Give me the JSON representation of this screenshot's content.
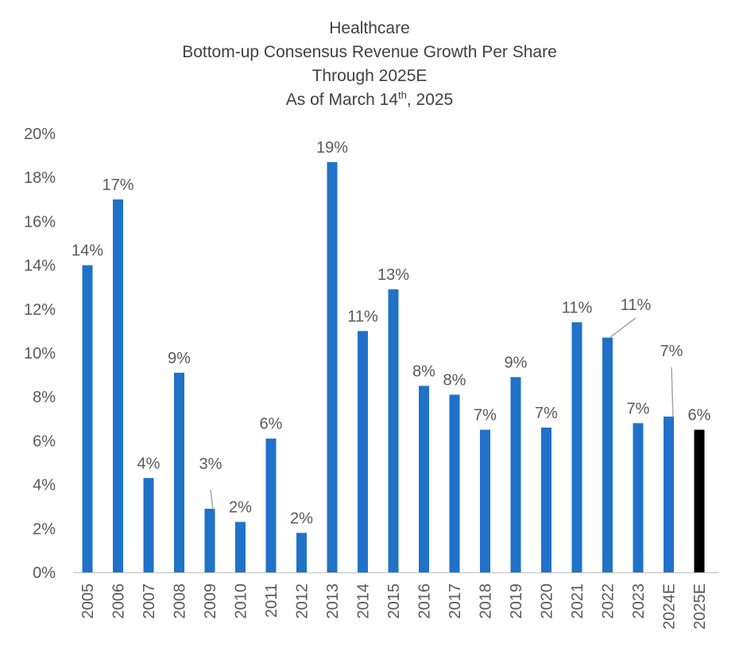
{
  "chart_data": {
    "type": "bar",
    "title_lines": [
      "Healthcare",
      "Bottom-up Consensus Revenue Growth Per Share",
      "Through 2025E"
    ],
    "title_asof_prefix": "As of March 14",
    "title_asof_superscript": "th",
    "title_asof_suffix": ", 2025",
    "xlabel": "",
    "ylabel": "",
    "ylim": [
      0,
      20
    ],
    "yticks": [
      "0%",
      "2%",
      "4%",
      "6%",
      "8%",
      "10%",
      "12%",
      "14%",
      "16%",
      "18%",
      "20%"
    ],
    "categories": [
      "2005",
      "2006",
      "2007",
      "2008",
      "2009",
      "2010",
      "2011",
      "2012",
      "2013",
      "2014",
      "2015",
      "2016",
      "2017",
      "2018",
      "2019",
      "2020",
      "2021",
      "2022",
      "2023",
      "2024E",
      "2025E"
    ],
    "values": [
      14.0,
      17.0,
      4.3,
      9.1,
      2.9,
      2.3,
      6.1,
      1.8,
      18.7,
      11.0,
      12.9,
      8.5,
      8.1,
      6.5,
      8.9,
      6.6,
      11.4,
      10.7,
      6.8,
      7.1,
      6.5
    ],
    "labels": [
      "14%",
      "17%",
      "4%",
      "9%",
      "3%",
      "2%",
      "6%",
      "2%",
      "19%",
      "11%",
      "13%",
      "8%",
      "8%",
      "7%",
      "9%",
      "7%",
      "11%",
      "11%",
      "7%",
      "7%",
      "6%"
    ],
    "bar_colors": [
      "#1f72c8",
      "#1f72c8",
      "#1f72c8",
      "#1f72c8",
      "#1f72c8",
      "#1f72c8",
      "#1f72c8",
      "#1f72c8",
      "#1f72c8",
      "#1f72c8",
      "#1f72c8",
      "#1f72c8",
      "#1f72c8",
      "#1f72c8",
      "#1f72c8",
      "#1f72c8",
      "#1f72c8",
      "#1f72c8",
      "#1f72c8",
      "#1f72c8",
      "#000000"
    ],
    "grid": false
  }
}
